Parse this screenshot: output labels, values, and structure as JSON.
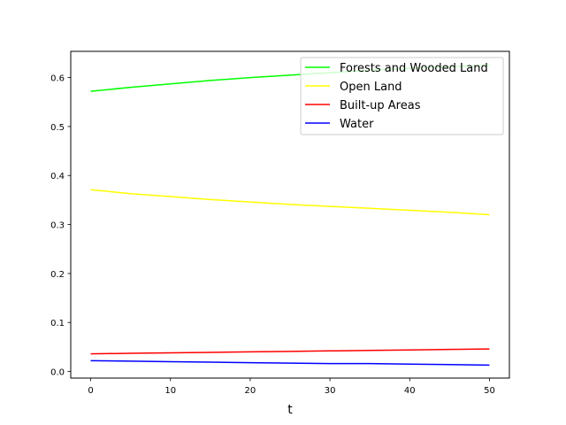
{
  "chart_data": {
    "type": "line",
    "title": "",
    "xlabel": "t",
    "ylabel": "",
    "xlim": [
      -2.5,
      52.5
    ],
    "ylim": [
      -0.0135,
      0.6535
    ],
    "xticks": [
      0,
      10,
      20,
      30,
      40,
      50
    ],
    "yticks": [
      0.0,
      0.1,
      0.2,
      0.3,
      0.4,
      0.5,
      0.6
    ],
    "xtick_labels": [
      "0",
      "10",
      "20",
      "30",
      "40",
      "50"
    ],
    "ytick_labels": [
      "0.0",
      "0.1",
      "0.2",
      "0.3",
      "0.4",
      "0.5",
      "0.6"
    ],
    "grid": false,
    "legend_position": "upper right",
    "x": [
      0,
      5,
      10,
      15,
      20,
      25,
      30,
      35,
      40,
      45,
      50
    ],
    "series": [
      {
        "name": "Forests and Wooded Land",
        "color": "#00ff00",
        "values": [
          0.572,
          0.58,
          0.587,
          0.594,
          0.6,
          0.605,
          0.61,
          0.615,
          0.619,
          0.622,
          0.625
        ]
      },
      {
        "name": "Open Land",
        "color": "#ffff00",
        "values": [
          0.371,
          0.363,
          0.357,
          0.351,
          0.346,
          0.341,
          0.337,
          0.333,
          0.329,
          0.325,
          0.32
        ]
      },
      {
        "name": "Built-up Areas",
        "color": "#ff0000",
        "values": [
          0.036,
          0.037,
          0.038,
          0.039,
          0.04,
          0.041,
          0.042,
          0.043,
          0.044,
          0.045,
          0.046
        ]
      },
      {
        "name": "Water",
        "color": "#0000ff",
        "values": [
          0.022,
          0.021,
          0.02,
          0.019,
          0.018,
          0.017,
          0.016,
          0.016,
          0.015,
          0.014,
          0.013
        ]
      }
    ]
  }
}
